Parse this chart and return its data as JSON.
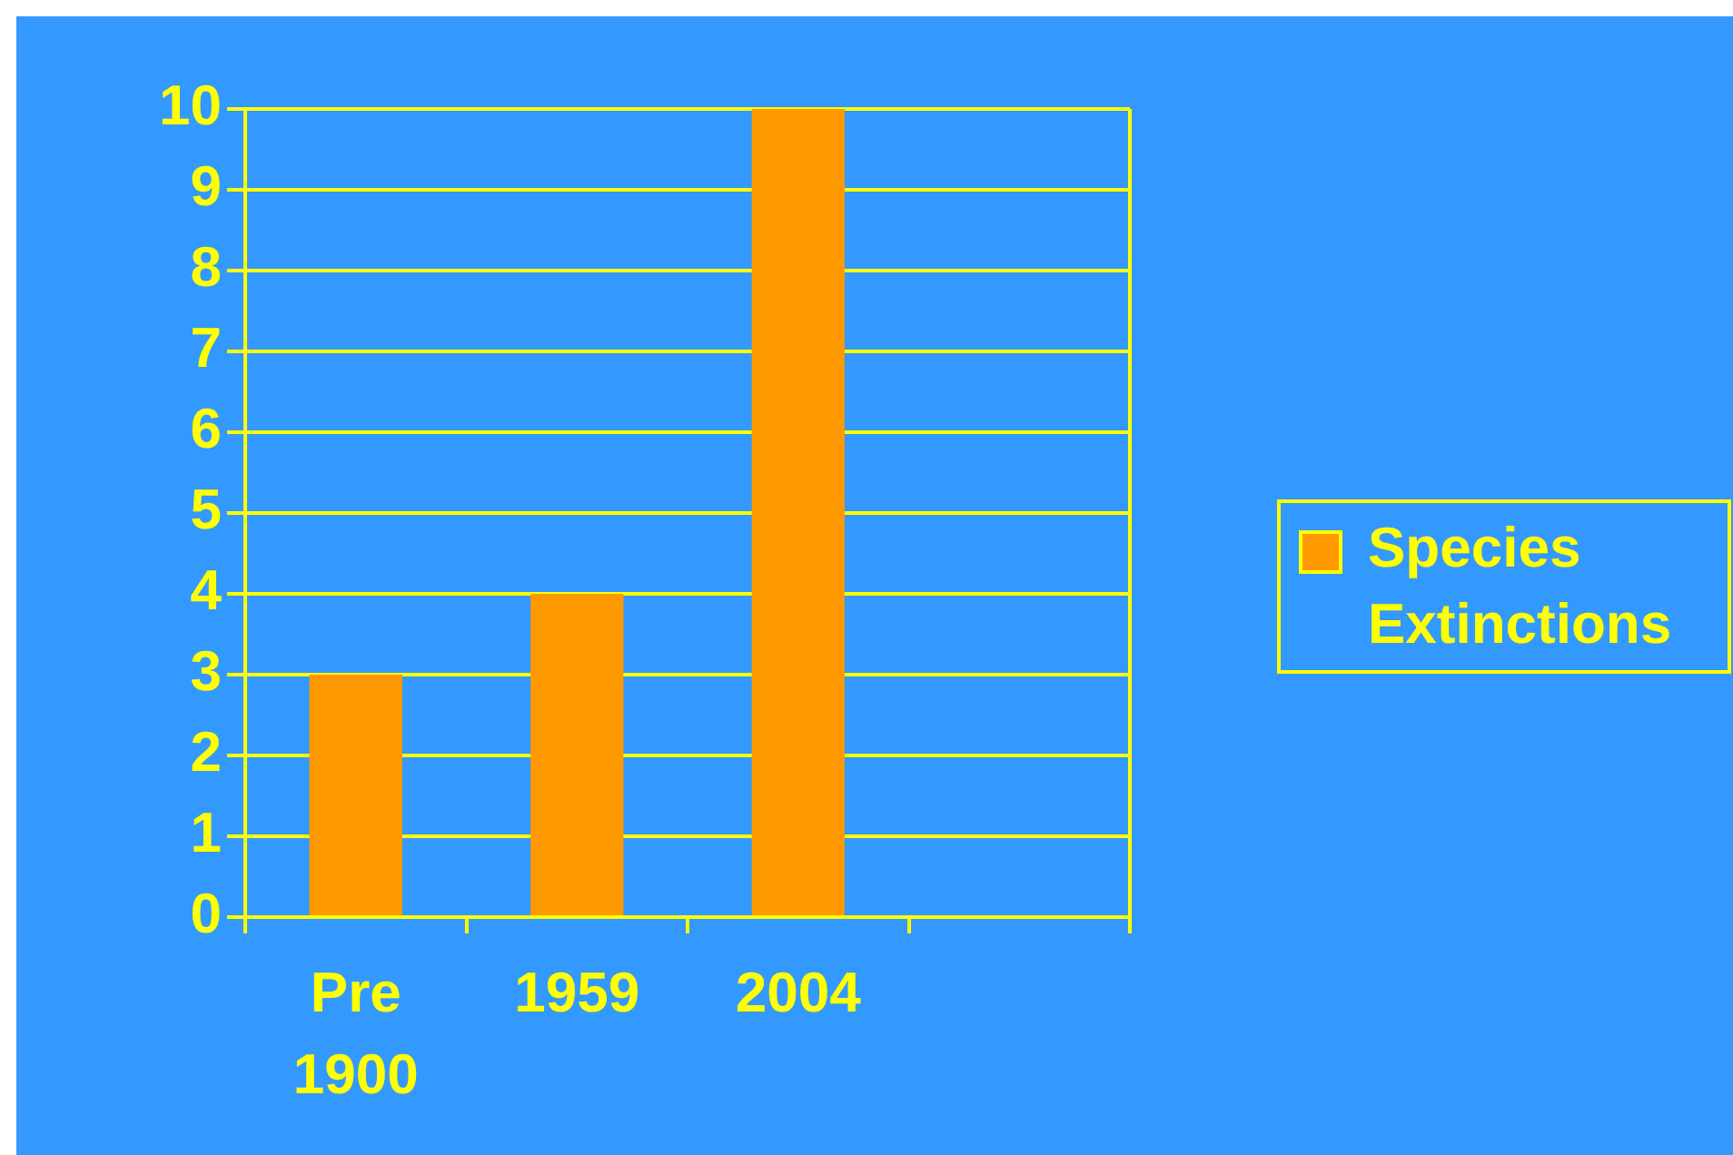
{
  "chart_data": {
    "type": "bar",
    "categories": [
      "Pre 1900",
      "1959",
      "2004",
      null
    ],
    "series": [
      {
        "name": "Species Extinctions",
        "color": "#ff9900",
        "values": [
          3,
          4,
          10,
          null
        ]
      }
    ],
    "ylim": [
      0,
      10
    ],
    "yticks": [
      0,
      1,
      2,
      3,
      4,
      5,
      6,
      7,
      8,
      9,
      10
    ],
    "grid": "y",
    "legend": "right"
  }
}
